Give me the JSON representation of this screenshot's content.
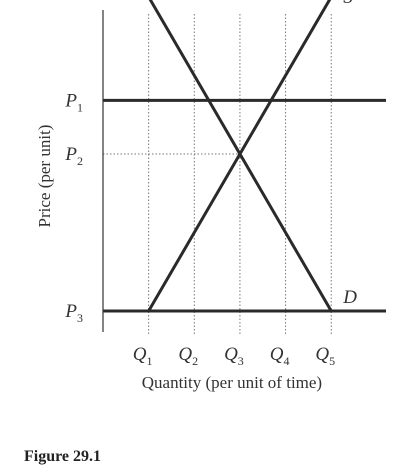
{
  "chart_data": {
    "type": "line",
    "ylabel": "Price (per unit)",
    "xlabel": "Quantity (per unit of time)",
    "x_ticks": [
      {
        "main": "Q",
        "sub": "1",
        "x": 1
      },
      {
        "main": "Q",
        "sub": "2",
        "x": 2
      },
      {
        "main": "Q",
        "sub": "3",
        "x": 3
      },
      {
        "main": "Q",
        "sub": "4",
        "x": 4
      },
      {
        "main": "Q",
        "sub": "5",
        "x": 5
      }
    ],
    "y_ticks": [
      {
        "main": "P",
        "sub": "1",
        "y": 0.805
      },
      {
        "main": "P",
        "sub": "2",
        "y": 0.6
      },
      {
        "main": "P",
        "sub": "3",
        "y": 0.0
      }
    ],
    "xlim": [
      0,
      6.2
    ],
    "ylim": [
      -0.08,
      1.15
    ],
    "series": [
      {
        "name": "S",
        "x": [
          1,
          3,
          5
        ],
        "y": [
          0.0,
          0.6,
          1.2
        ]
      },
      {
        "name": "D",
        "x": [
          1,
          3,
          5
        ],
        "y": [
          1.2,
          0.6,
          0.0
        ]
      }
    ],
    "horizontal_lines": [
      {
        "y": 0.805,
        "x_range": [
          0,
          6.2
        ],
        "style": "solid"
      },
      {
        "y": 0.0,
        "x_range": [
          0,
          6.2
        ],
        "style": "solid"
      },
      {
        "y": 0.6,
        "x_range": [
          0,
          3
        ],
        "style": "dotted"
      }
    ],
    "vertical_gridlines": {
      "x": [
        1,
        2,
        3,
        4,
        5
      ],
      "style": "dotted"
    },
    "axes": {
      "left": true,
      "bottom": false
    }
  },
  "caption": "Figure 29.1"
}
